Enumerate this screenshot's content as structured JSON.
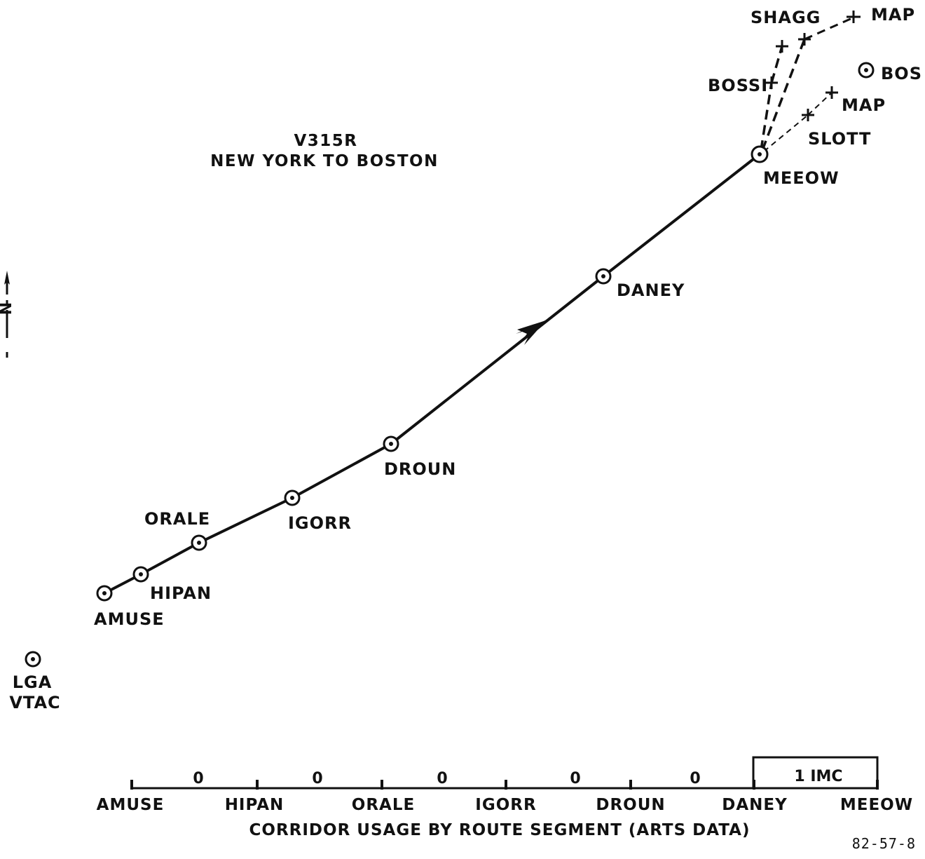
{
  "route": {
    "title_line1": "V315R",
    "title_line2": "NEW YORK TO BOSTON"
  },
  "waypoints": [
    {
      "id": "amuse",
      "label": "AMUSE"
    },
    {
      "id": "hipan",
      "label": "HIPAN"
    },
    {
      "id": "orale",
      "label": "ORALE"
    },
    {
      "id": "igorr",
      "label": "IGORR"
    },
    {
      "id": "droun",
      "label": "DROUN"
    },
    {
      "id": "daney",
      "label": "DANEY"
    },
    {
      "id": "meeow",
      "label": "MEEOW"
    }
  ],
  "branch_fixes": {
    "shagg": "SHAGG",
    "map_north": "MAP",
    "bossi": "BOSSI",
    "bos": "BOS",
    "map_east": "MAP",
    "slott": "SLOTT"
  },
  "vtac": {
    "line1": "LGA",
    "line2": "VTAC"
  },
  "north_arrow": {
    "letter": "N"
  },
  "corridor": {
    "caption": "CORRIDOR USAGE BY ROUTE SEGMENT (ARTS DATA)",
    "segments": [
      {
        "from": "AMUSE",
        "to": "HIPAN",
        "count": "0"
      },
      {
        "from": "HIPAN",
        "to": "ORALE",
        "count": "0"
      },
      {
        "from": "ORALE",
        "to": "IGORR",
        "count": "0"
      },
      {
        "from": "IGORR",
        "to": "DROUN",
        "count": "0"
      },
      {
        "from": "DROUN",
        "to": "DANEY",
        "count": "0"
      },
      {
        "from": "DANEY",
        "to": "MEEOW",
        "count": "1 IMC"
      }
    ],
    "tick_labels": [
      "AMUSE",
      "HIPAN",
      "ORALE",
      "IGORR",
      "DROUN",
      "DANEY",
      "MEEOW"
    ]
  },
  "figure_id": "82-57-8"
}
